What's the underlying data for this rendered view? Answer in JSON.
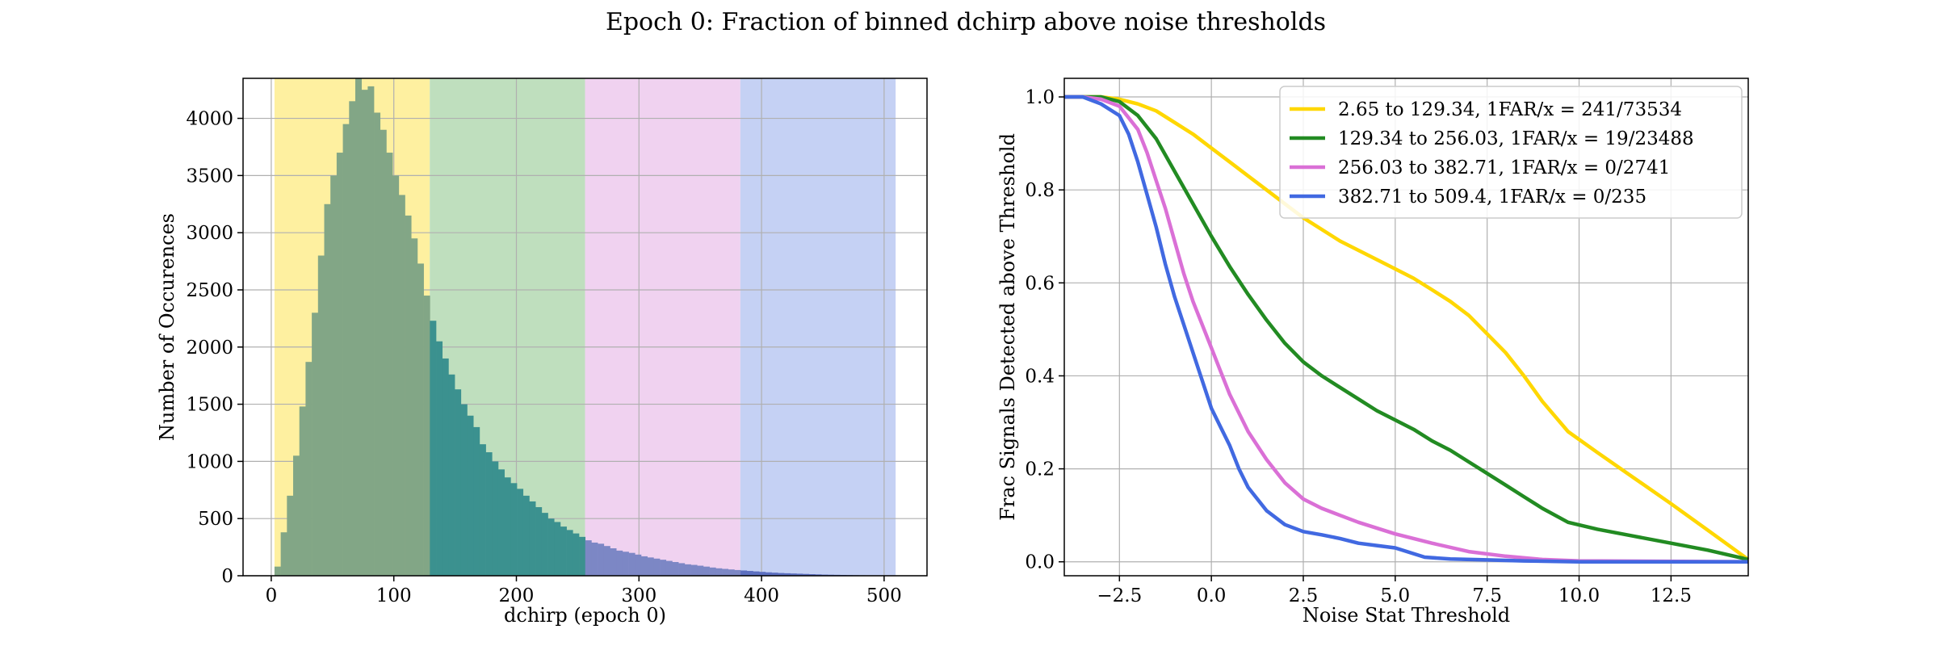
{
  "figure": {
    "title": "Epoch 0: Fraction of binned dchirp above noise thresholds"
  },
  "chart_data": [
    {
      "type": "bar",
      "subtype": "histogram",
      "xlabel": "dchirp (epoch 0)",
      "ylabel": "Number of Occurences",
      "xlim": [
        -23,
        535
      ],
      "ylim": [
        0,
        4350
      ],
      "xticks": [
        0,
        100,
        200,
        300,
        400,
        500
      ],
      "yticks": [
        0,
        500,
        1000,
        1500,
        2000,
        2500,
        3000,
        3500,
        4000
      ],
      "grid": true,
      "bin_width": 5.07,
      "bin_start": 2.65,
      "bar_color": "#2f7a7b",
      "counts": [
        80,
        380,
        700,
        1050,
        1480,
        1870,
        2300,
        2800,
        3250,
        3500,
        3700,
        3950,
        4150,
        4350,
        4250,
        4280,
        4050,
        3900,
        3700,
        3500,
        3330,
        3150,
        2950,
        2730,
        2450,
        2230,
        2050,
        1900,
        1760,
        1630,
        1500,
        1400,
        1300,
        1150,
        1080,
        1000,
        930,
        860,
        810,
        760,
        700,
        650,
        600,
        550,
        500,
        470,
        430,
        400,
        370,
        340,
        310,
        290,
        280,
        260,
        240,
        220,
        210,
        200,
        185,
        170,
        160,
        150,
        140,
        130,
        120,
        110,
        100,
        95,
        88,
        80,
        72,
        65,
        60,
        55,
        50,
        46,
        42,
        38,
        34,
        30,
        27,
        24,
        22,
        20,
        18,
        16,
        14,
        12,
        10,
        9,
        8,
        7,
        6,
        5,
        4,
        3,
        3,
        2,
        2,
        1,
        1
      ],
      "shaded_bins": [
        {
          "from": 2.65,
          "to": 129.34,
          "color": "#fef0a0"
        },
        {
          "from": 129.34,
          "to": 256.03,
          "color": "#bfdfbe"
        },
        {
          "from": 256.03,
          "to": 382.71,
          "color": "#f0d2f0"
        },
        {
          "from": 382.71,
          "to": 509.4,
          "color": "#c5d1f4"
        }
      ],
      "overlay_colors": [
        "#82a686",
        "#3b918f",
        "#7c87c5",
        "#5c6fc0"
      ]
    },
    {
      "type": "line",
      "xlabel": "Noise Stat Threshold",
      "ylabel": "Frac Signals Detected above Threshold",
      "xlim": [
        -4,
        14.6
      ],
      "ylim": [
        -0.03,
        1.04
      ],
      "xticks": [
        -2.5,
        0.0,
        2.5,
        5.0,
        7.5,
        10.0,
        12.5
      ],
      "xtick_labels": [
        "−2.5",
        "0.0",
        "2.5",
        "5.0",
        "7.5",
        "10.0",
        "12.5"
      ],
      "yticks": [
        0.0,
        0.2,
        0.4,
        0.6,
        0.8,
        1.0
      ],
      "ytick_labels": [
        "0.0",
        "0.2",
        "0.4",
        "0.6",
        "0.8",
        "1.0"
      ],
      "grid": true,
      "legend_position": "top-right",
      "series": [
        {
          "name": "2.65 to 129.34, 1FAR/x = 241/73534",
          "color": "#ffd700",
          "x": [
            -4,
            -3.5,
            -3,
            -2.5,
            -2,
            -1.5,
            -1,
            -0.5,
            0,
            0.5,
            1,
            1.5,
            2,
            2.5,
            3,
            3.5,
            4,
            4.5,
            5,
            5.5,
            6,
            6.5,
            7,
            7.5,
            8,
            8.5,
            9,
            9.7,
            10.5,
            11.5,
            12.5,
            13.5,
            14.6
          ],
          "y": [
            1.0,
            1.0,
            1.0,
            0.995,
            0.985,
            0.97,
            0.945,
            0.92,
            0.89,
            0.86,
            0.83,
            0.8,
            0.77,
            0.74,
            0.715,
            0.69,
            0.67,
            0.65,
            0.63,
            0.61,
            0.585,
            0.56,
            0.53,
            0.49,
            0.45,
            0.4,
            0.345,
            0.28,
            0.235,
            0.18,
            0.125,
            0.068,
            0.005
          ]
        },
        {
          "name": "129.34 to 256.03, 1FAR/x = 19/23488",
          "color": "#228b22",
          "x": [
            -4,
            -3.5,
            -3,
            -2.5,
            -2,
            -1.5,
            -1,
            -0.5,
            0,
            0.5,
            1,
            1.5,
            2,
            2.5,
            3,
            3.5,
            4,
            4.5,
            5,
            5.5,
            6,
            6.5,
            7,
            7.5,
            8,
            8.5,
            9,
            9.7,
            10.5,
            11.5,
            12.5,
            13.5,
            14.6
          ],
          "y": [
            1.0,
            1.0,
            1.0,
            0.99,
            0.96,
            0.91,
            0.84,
            0.77,
            0.7,
            0.635,
            0.575,
            0.52,
            0.47,
            0.43,
            0.4,
            0.375,
            0.35,
            0.325,
            0.305,
            0.285,
            0.26,
            0.24,
            0.215,
            0.19,
            0.165,
            0.14,
            0.115,
            0.085,
            0.07,
            0.055,
            0.04,
            0.025,
            0.005
          ]
        },
        {
          "name": "256.03 to 382.71, 1FAR/x = 0/2741",
          "color": "#da70d6",
          "x": [
            -4,
            -3.5,
            -3,
            -2.5,
            -2,
            -1.75,
            -1.5,
            -1.25,
            -1,
            -0.75,
            -0.5,
            -0.25,
            0,
            0.25,
            0.5,
            0.75,
            1,
            1.5,
            2,
            2.5,
            3,
            3.5,
            4,
            5,
            6,
            7,
            8,
            9,
            10,
            14.6
          ],
          "y": [
            1.0,
            1.0,
            0.995,
            0.98,
            0.93,
            0.88,
            0.82,
            0.76,
            0.69,
            0.62,
            0.56,
            0.51,
            0.46,
            0.41,
            0.36,
            0.32,
            0.28,
            0.22,
            0.17,
            0.135,
            0.115,
            0.1,
            0.085,
            0.06,
            0.04,
            0.022,
            0.012,
            0.005,
            0.002,
            0.0
          ]
        },
        {
          "name": "382.71 to 509.4, 1FAR/x = 0/235",
          "color": "#4169e1",
          "x": [
            -4,
            -3.5,
            -3,
            -2.5,
            -2.25,
            -2,
            -1.75,
            -1.5,
            -1.25,
            -1,
            -0.75,
            -0.5,
            -0.25,
            0,
            0.25,
            0.5,
            0.75,
            1,
            1.5,
            2,
            2.5,
            3,
            3.5,
            4,
            4.5,
            5,
            5.8,
            6.5,
            7.5,
            8.5,
            10,
            14.6
          ],
          "y": [
            1.0,
            1.0,
            0.985,
            0.96,
            0.92,
            0.86,
            0.79,
            0.72,
            0.64,
            0.57,
            0.51,
            0.45,
            0.39,
            0.33,
            0.29,
            0.25,
            0.2,
            0.16,
            0.11,
            0.08,
            0.065,
            0.058,
            0.05,
            0.04,
            0.035,
            0.03,
            0.01,
            0.006,
            0.004,
            0.002,
            0.0,
            0.0
          ]
        }
      ]
    }
  ]
}
